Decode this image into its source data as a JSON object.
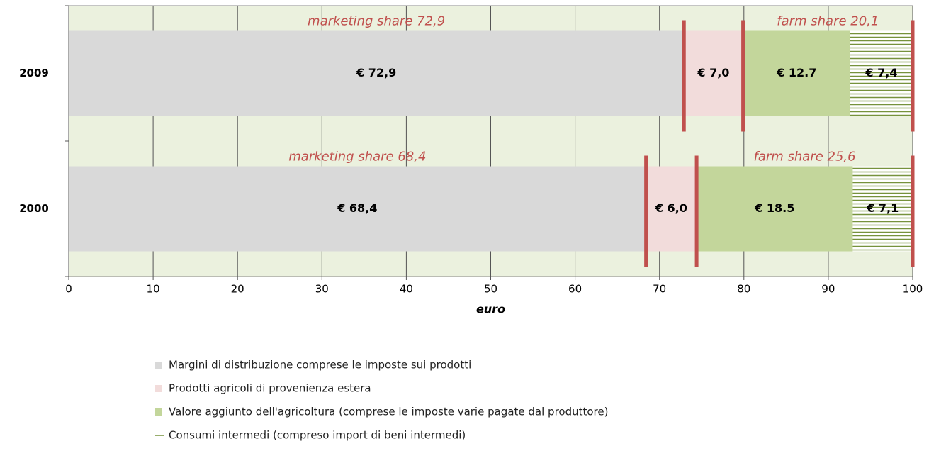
{
  "chart_data": {
    "type": "stacked_barh",
    "categories": [
      "2009",
      "2000"
    ],
    "series": [
      {
        "name": "Margini di distribuzione comprese le imposte sui prodotti",
        "color": "#d9d9d9",
        "values": [
          72.9,
          68.4
        ],
        "value_labels": [
          "€ 72,9",
          "€ 68,4"
        ]
      },
      {
        "name": "Prodotti agricoli di provenienza estera",
        "color": "#f2dcdb",
        "values": [
          7.0,
          6.0
        ],
        "value_labels": [
          "€ 7,0",
          "€ 6,0"
        ]
      },
      {
        "name": "Valore aggiunto dell'agricoltura (comprese le imposte varie pagate dal produttore)",
        "color": "#c3d69b",
        "values": [
          12.7,
          18.5
        ],
        "value_labels": [
          "€ 12.7",
          "€ 18.5"
        ]
      },
      {
        "name": "Consumi intermedi (compreso import di beni intermedi)",
        "color": "#76923c",
        "hatch": true,
        "values": [
          7.4,
          7.1
        ],
        "value_labels": [
          "€ 7,4",
          "€ 7,1"
        ]
      }
    ],
    "annotations": [
      [
        "marketing share 72,9",
        "farm share 20,1"
      ],
      [
        "marketing share 68,4",
        "farm share 25,6"
      ]
    ],
    "divider_color": "#c0504d",
    "xlabel": "euro",
    "xlim": [
      0,
      100
    ],
    "xticks": [
      0,
      10,
      20,
      30,
      40,
      50,
      60,
      70,
      80,
      90,
      100
    ],
    "grid": true,
    "plot_background": "#ebf1de"
  }
}
